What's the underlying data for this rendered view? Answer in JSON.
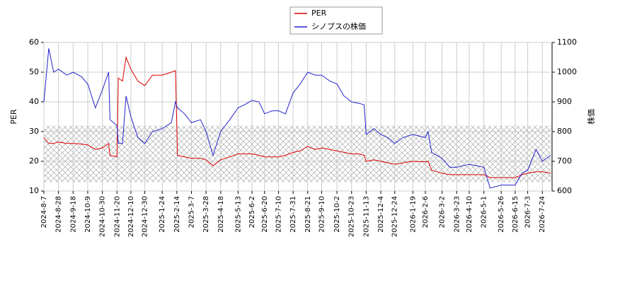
{
  "chart_data": {
    "type": "line",
    "ylabel": "PER",
    "y2label": "株価",
    "x": [
      "2024-8-7",
      "2024-8-14",
      "2024-8-21",
      "2024-8-28",
      "2024-9-9",
      "2024-9-18",
      "2024-9-30",
      "2024-10-9",
      "2024-10-20",
      "2024-10-30",
      "2024-11-8",
      "2024-11-10",
      "2024-11-20",
      "2024-11-22",
      "2024-11-28",
      "2024-12-3",
      "2024-12-10",
      "2024-12-20",
      "2024-12-30",
      "2025-1-10",
      "2025-1-24",
      "2025-2-6",
      "2025-2-12",
      "2025-2-15",
      "2025-2-25",
      "2025-3-7",
      "2025-3-20",
      "2025-3-28",
      "2025-4-7",
      "2025-4-18",
      "2025-5-1",
      "2025-5-13",
      "2025-5-22",
      "2025-6-2",
      "2025-6-12",
      "2025-6-20",
      "2025-7-1",
      "2025-7-10",
      "2025-7-20",
      "2025-7-31",
      "2025-8-10",
      "2025-8-21",
      "2025-9-1",
      "2025-9-10",
      "2025-9-22",
      "2025-10-2",
      "2025-10-12",
      "2025-10-23",
      "2025-11-3",
      "2025-11-10",
      "2025-11-13",
      "2025-11-24",
      "2025-12-4",
      "2025-12-14",
      "2025-12-24",
      "2026-1-5",
      "2026-1-19",
      "2026-2-6",
      "2026-2-10",
      "2026-2-15",
      "2026-3-2",
      "2026-3-13",
      "2026-3-23",
      "2026-4-10",
      "2026-5-1",
      "2026-5-10",
      "2026-5-26",
      "2026-6-15",
      "2026-6-25",
      "2026-7-3",
      "2026-7-15",
      "2026-7-24",
      "2026-8-5"
    ],
    "series": [
      {
        "name": "PER",
        "color": "#dd0000",
        "axis": "y",
        "values": [
          28,
          26,
          26,
          26.5,
          26,
          26,
          25.8,
          25.5,
          24,
          24.5,
          26,
          22,
          21.5,
          48,
          47,
          55,
          51,
          47,
          45.5,
          49,
          49,
          50,
          50.5,
          22,
          21.5,
          21,
          21,
          20.5,
          18.5,
          20.5,
          21.5,
          22.5,
          22.5,
          22.5,
          22,
          21.5,
          21.5,
          21.5,
          22,
          23,
          23.5,
          25,
          24,
          24.5,
          24,
          23.5,
          23,
          22.5,
          22.5,
          22,
          20,
          20.5,
          20,
          19.5,
          19,
          19.5,
          20,
          19.8,
          20,
          17,
          16,
          15.5,
          15.5,
          15.5,
          15.5,
          14.5,
          14.5,
          14.5,
          15.5,
          16,
          16.5,
          16.5,
          16
        ]
      },
      {
        "name": "シノプスの株価",
        "color": "#2222cc",
        "axis": "y2",
        "values": [
          900,
          1080,
          1000,
          1010,
          990,
          1000,
          985,
          960,
          880,
          940,
          1000,
          840,
          820,
          760,
          760,
          920,
          850,
          780,
          760,
          800,
          810,
          830,
          900,
          880,
          860,
          830,
          840,
          800,
          720,
          800,
          840,
          880,
          890,
          905,
          900,
          860,
          870,
          870,
          860,
          930,
          960,
          1000,
          990,
          990,
          970,
          960,
          920,
          900,
          895,
          890,
          790,
          810,
          790,
          780,
          760,
          780,
          790,
          780,
          800,
          730,
          710,
          680,
          680,
          690,
          680,
          610,
          620,
          620,
          660,
          670,
          740,
          700,
          720
        ]
      }
    ],
    "xlim": [
      "2024-8-7",
      "2026-8-7"
    ],
    "xticks": [
      "2024-8-7",
      "2024-8-28",
      "2024-9-18",
      "2024-10-9",
      "2024-10-30",
      "2024-11-20",
      "2024-12-10",
      "2024-12-30",
      "2025-1-24",
      "2025-2-14",
      "2025-3-7",
      "2025-3-28",
      "2025-4-18",
      "2025-5-13",
      "2025-6-2",
      "2025-6-20",
      "2025-7-10",
      "2025-7-31",
      "2025-8-21",
      "2025-9-10",
      "2025-10-2",
      "2025-10-23",
      "2025-11-13",
      "2025-12-4",
      "2025-12-24",
      "2026-1-19",
      "2026-2-6",
      "2026-3-2",
      "2026-3-23",
      "2026-4-10",
      "2026-5-1",
      "2026-5-26",
      "2026-6-15",
      "2026-7-3",
      "2026-7-24"
    ],
    "ylim": [
      10,
      60
    ],
    "yticks": [
      10,
      20,
      30,
      40,
      50,
      60
    ],
    "y2lim": [
      600,
      1100
    ],
    "y2ticks": [
      600,
      700,
      800,
      900,
      1000,
      1100
    ],
    "shaded_range": [
      13,
      32
    ],
    "grid": true,
    "legend": "top"
  }
}
